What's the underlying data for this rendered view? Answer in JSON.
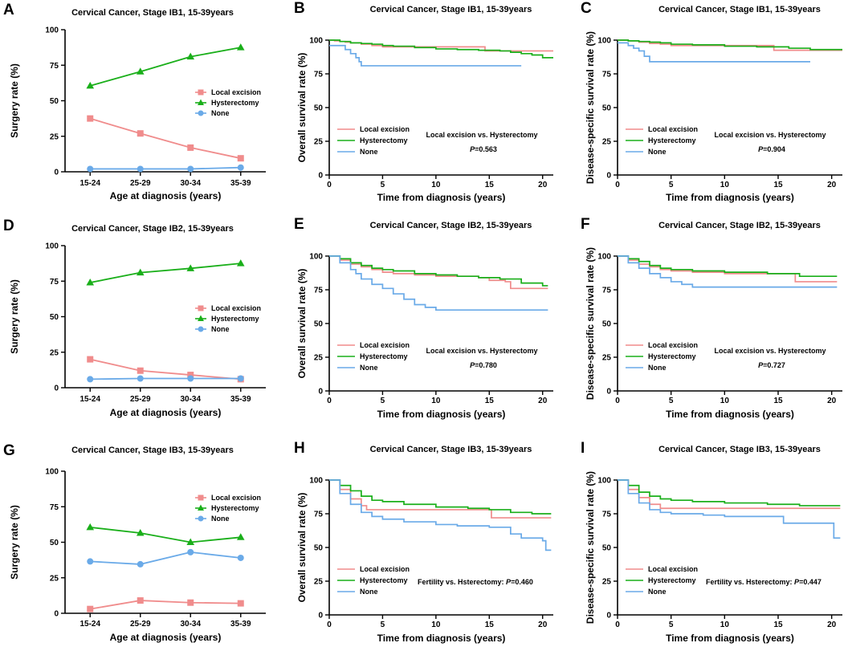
{
  "colors": {
    "local": "#F08C8C",
    "hyst": "#1AAF1A",
    "none": "#6AAAE8",
    "axis": "#000000"
  },
  "chart_data": [
    {
      "panel": "A",
      "type": "line",
      "title": "Cervical Cancer, Stage IB1, 15-39years",
      "xlabel": "Age at diagnosis (years)",
      "ylabel": "Surgery rate (%)",
      "categories": [
        "15-24",
        "25-29",
        "30-34",
        "35-39"
      ],
      "ylim": [
        0,
        100
      ],
      "yticks": [
        0,
        25,
        50,
        75,
        100
      ],
      "legend": [
        "Local excision",
        "Hysterectomy",
        "None"
      ],
      "series": [
        {
          "name": "Local excision",
          "values": [
            37.5,
            27,
            17,
            9.5
          ]
        },
        {
          "name": "Hysterectomy",
          "values": [
            60.5,
            70.5,
            81,
            87.5
          ]
        },
        {
          "name": "None",
          "values": [
            2,
            2,
            2,
            3
          ]
        }
      ]
    },
    {
      "panel": "B",
      "type": "line",
      "title": "Cervical Cancer, Stage IB1, 15-39years",
      "xlabel": "Time from diagnosis (years)",
      "ylabel": "Overall survival rate (%)",
      "xlim": [
        0,
        21
      ],
      "xticks": [
        0,
        5,
        10,
        15,
        20
      ],
      "ylim": [
        0,
        100
      ],
      "yticks": [
        0,
        25,
        50,
        75,
        100
      ],
      "legend": [
        "Local excision",
        "Hysterectomy",
        "None"
      ],
      "annotation": "Local excision vs. Hysterectomy",
      "pvalue_label": "P",
      "pvalue": "=0.563",
      "series": [
        {
          "name": "Local excision",
          "x": [
            0,
            0.5,
            1,
            1.5,
            2,
            3,
            4,
            5,
            7,
            10,
            12,
            14.5,
            14.6,
            17,
            21
          ],
          "values": [
            100,
            99.5,
            99,
            98.5,
            98,
            97,
            96,
            95,
            95,
            95,
            95,
            95,
            92,
            92,
            92
          ]
        },
        {
          "name": "Hysterectomy",
          "x": [
            0,
            1,
            2,
            3,
            4,
            5,
            6,
            8,
            10,
            12,
            14,
            16,
            17,
            18,
            19,
            20,
            21
          ],
          "values": [
            100,
            99,
            98,
            97.5,
            97,
            96,
            95.5,
            94.5,
            93.5,
            93,
            92.5,
            92,
            91,
            90,
            89,
            87,
            87
          ]
        },
        {
          "name": "None",
          "x": [
            0,
            0.8,
            1.5,
            2,
            2.5,
            2.8,
            3,
            10,
            18
          ],
          "values": [
            96,
            96,
            93,
            90,
            87,
            84,
            81,
            81,
            81
          ]
        }
      ]
    },
    {
      "panel": "C",
      "type": "line",
      "title": "Cervical Cancer, Stage IB1, 15-39years",
      "xlabel": "Time from diagnosis (years)",
      "ylabel": "Disease-specific survival rate (%)",
      "xlim": [
        0,
        21
      ],
      "xticks": [
        0,
        5,
        10,
        15,
        20
      ],
      "ylim": [
        0,
        100
      ],
      "yticks": [
        0,
        25,
        50,
        75,
        100
      ],
      "legend": [
        "Local excision",
        "Hysterectomy",
        "None"
      ],
      "annotation": "Local excision vs. Hysterectomy",
      "pvalue_label": "P",
      "pvalue": "=0.904",
      "series": [
        {
          "name": "Local excision",
          "x": [
            0,
            1,
            2,
            3,
            4,
            5,
            8,
            10,
            14.5,
            14.6,
            21
          ],
          "values": [
            100,
            99.5,
            98.5,
            97.5,
            97,
            96,
            96,
            96,
            96,
            92.5,
            92.5
          ]
        },
        {
          "name": "Hysterectomy",
          "x": [
            0,
            1,
            2,
            3,
            4,
            5,
            7,
            10,
            13,
            16,
            18,
            21
          ],
          "values": [
            100,
            99.5,
            99,
            98.5,
            98,
            97,
            96.5,
            95.5,
            95,
            94,
            93,
            93
          ]
        },
        {
          "name": "None",
          "x": [
            0,
            1,
            1.5,
            2,
            2.5,
            3,
            10,
            18
          ],
          "values": [
            98,
            96,
            94,
            92,
            88,
            84,
            84,
            84
          ]
        }
      ]
    },
    {
      "panel": "D",
      "type": "line",
      "title": "Cervical Cancer, Stage IB2, 15-39years",
      "xlabel": "Age at diagnosis (years)",
      "ylabel": "Surgery rate (%)",
      "categories": [
        "15-24",
        "25-29",
        "30-34",
        "35-39"
      ],
      "ylim": [
        0,
        100
      ],
      "yticks": [
        0,
        25,
        50,
        75,
        100
      ],
      "legend": [
        "Local excision",
        "Hysterectomy",
        "None"
      ],
      "series": [
        {
          "name": "Local excision",
          "values": [
            20,
            12,
            9,
            6
          ]
        },
        {
          "name": "Hysterectomy",
          "values": [
            74,
            81,
            84,
            87.5
          ]
        },
        {
          "name": "None",
          "values": [
            6,
            6.5,
            6.5,
            6.5
          ]
        }
      ]
    },
    {
      "panel": "E",
      "type": "line",
      "title": "Cervical Cancer, Stage IB2, 15-39years",
      "xlabel": "Time from diagnosis (years)",
      "ylabel": "Overall survival rate (%)",
      "xlim": [
        0,
        21
      ],
      "xticks": [
        0,
        5,
        10,
        15,
        20
      ],
      "ylim": [
        0,
        100
      ],
      "yticks": [
        0,
        25,
        50,
        75,
        100
      ],
      "legend": [
        "Local excision",
        "Hysterectomy",
        "None"
      ],
      "annotation": "Local excision vs. Hysterectomy",
      "pvalue_label": "P",
      "pvalue": "=0.780",
      "series": [
        {
          "name": "Local excision",
          "x": [
            0,
            1,
            2,
            3,
            4,
            5,
            6,
            8,
            10,
            12,
            14,
            15,
            16.5,
            17,
            20.5
          ],
          "values": [
            100,
            97,
            94,
            92,
            90,
            88,
            87,
            86,
            85,
            85,
            84,
            82,
            81,
            76,
            76
          ]
        },
        {
          "name": "Hysterectomy",
          "x": [
            0,
            1,
            2,
            3,
            4,
            5,
            6,
            8,
            10,
            12,
            14,
            16,
            18,
            20,
            20.5
          ],
          "values": [
            100,
            98,
            95,
            93,
            91,
            90,
            89,
            87,
            86,
            85,
            84,
            83,
            80,
            78,
            78
          ]
        },
        {
          "name": "None",
          "x": [
            0,
            1,
            2,
            2.5,
            3,
            4,
            5,
            6,
            7,
            8,
            9,
            10,
            20.5
          ],
          "values": [
            100,
            95,
            90,
            87,
            83,
            79,
            76,
            72,
            68,
            64,
            62,
            60,
            60
          ]
        }
      ]
    },
    {
      "panel": "F",
      "type": "line",
      "title": "Cervical Cancer, Stage IB2, 15-39years",
      "xlabel": "Time from diagnosis (years)",
      "ylabel": "Disease-specific survival rate (%)",
      "xlim": [
        0,
        21
      ],
      "xticks": [
        0,
        5,
        10,
        15,
        20
      ],
      "ylim": [
        0,
        100
      ],
      "yticks": [
        0,
        25,
        50,
        75,
        100
      ],
      "legend": [
        "Local excision",
        "Hysterectomy",
        "None"
      ],
      "annotation": "Local excision vs. Hysterectomy",
      "pvalue_label": "P",
      "pvalue": "=0.727",
      "series": [
        {
          "name": "Local excision",
          "x": [
            0,
            1,
            2,
            3,
            4,
            5,
            7,
            10,
            14,
            16.5,
            16.6,
            20.5
          ],
          "values": [
            100,
            97,
            94,
            92,
            90,
            89,
            88,
            87,
            87,
            87,
            81,
            81
          ]
        },
        {
          "name": "Hysterectomy",
          "x": [
            0,
            1,
            2,
            3,
            4,
            5,
            7,
            10,
            14,
            17,
            20.5
          ],
          "values": [
            100,
            98,
            96,
            93,
            91,
            90,
            89,
            88,
            87,
            85,
            85
          ]
        },
        {
          "name": "None",
          "x": [
            0,
            1,
            2,
            3,
            4,
            5,
            6,
            7,
            20.5
          ],
          "values": [
            100,
            95,
            91,
            87,
            84,
            81,
            79,
            77,
            77
          ]
        }
      ]
    },
    {
      "panel": "G",
      "type": "line",
      "title": "Cervical Cancer, Stage IB3, 15-39years",
      "xlabel": "Age at diagnosis (years)",
      "ylabel": "Surgery rate (%)",
      "categories": [
        "15-24",
        "25-29",
        "30-34",
        "35-39"
      ],
      "ylim": [
        0,
        100
      ],
      "yticks": [
        0,
        25,
        50,
        75,
        100
      ],
      "legend": [
        "Local excision",
        "Hysterectomy",
        "None"
      ],
      "series": [
        {
          "name": "Local excision",
          "values": [
            3,
            9,
            7.5,
            7
          ]
        },
        {
          "name": "Hysterectomy",
          "values": [
            60.5,
            56.5,
            50,
            53.5
          ]
        },
        {
          "name": "None",
          "values": [
            36.5,
            34.5,
            43,
            39
          ]
        }
      ]
    },
    {
      "panel": "H",
      "type": "line",
      "title": "Cervical Cancer, Stage IB3, 15-39years",
      "xlabel": "Time from diagnosis (years)",
      "ylabel": "Overall survival rate (%)",
      "xlim": [
        0,
        21
      ],
      "xticks": [
        0,
        5,
        10,
        15,
        20
      ],
      "ylim": [
        0,
        100
      ],
      "yticks": [
        0,
        25,
        50,
        75,
        100
      ],
      "legend": [
        "Local excision",
        "Hysterectomy",
        "None"
      ],
      "annotation": "Fertility vs. Hsterectomy: ",
      "pvalue_label": "P",
      "pvalue": "=0.460",
      "series": [
        {
          "name": "Local excision",
          "x": [
            0,
            1,
            2,
            3,
            3.5,
            5,
            10,
            15,
            15.2,
            20.8
          ],
          "values": [
            100,
            93,
            86,
            81,
            78,
            78,
            78,
            78,
            72,
            72
          ]
        },
        {
          "name": "Hysterectomy",
          "x": [
            0,
            1,
            2,
            3,
            4,
            5,
            7,
            10,
            13,
            15,
            17,
            19,
            20.8
          ],
          "values": [
            100,
            96,
            92,
            88,
            85,
            84,
            82,
            80,
            79,
            78,
            76,
            75,
            75
          ]
        },
        {
          "name": "None",
          "x": [
            0,
            1,
            2,
            3,
            4,
            5,
            7,
            10,
            12,
            15,
            17,
            18,
            20,
            20.3,
            20.8
          ],
          "values": [
            100,
            90,
            82,
            76,
            73,
            71,
            69,
            67,
            66,
            65,
            60,
            57,
            55,
            48,
            48
          ]
        }
      ]
    },
    {
      "panel": "I",
      "type": "line",
      "title": "Cervical Cancer, Stage IB3, 15-39years",
      "xlabel": "Time from diagnosis (years)",
      "ylabel": "Disease-specific survival rate (%)",
      "xlim": [
        0,
        21
      ],
      "xticks": [
        0,
        5,
        10,
        15,
        20
      ],
      "ylim": [
        0,
        100
      ],
      "yticks": [
        0,
        25,
        50,
        75,
        100
      ],
      "legend": [
        "Local excision",
        "Hysterectomy",
        "None"
      ],
      "annotation": "Fertility vs. Hsterectomy: ",
      "pvalue_label": "P",
      "pvalue": "=0.447",
      "series": [
        {
          "name": "Local excision",
          "x": [
            0,
            1,
            2,
            3,
            4,
            10,
            20.8
          ],
          "values": [
            100,
            93,
            87,
            82,
            79,
            79,
            79
          ]
        },
        {
          "name": "Hysterectomy",
          "x": [
            0,
            1,
            2,
            3,
            4,
            5,
            7,
            10,
            14,
            17,
            20.8
          ],
          "values": [
            100,
            96,
            91,
            88,
            86,
            85,
            84,
            83,
            82,
            81,
            81
          ]
        },
        {
          "name": "None",
          "x": [
            0,
            1,
            2,
            3,
            4,
            5,
            8,
            10,
            15,
            15.5,
            20,
            20.2,
            20.8
          ],
          "values": [
            100,
            90,
            83,
            78,
            76,
            75,
            74,
            73,
            73,
            68,
            68,
            57,
            57
          ]
        }
      ]
    }
  ]
}
